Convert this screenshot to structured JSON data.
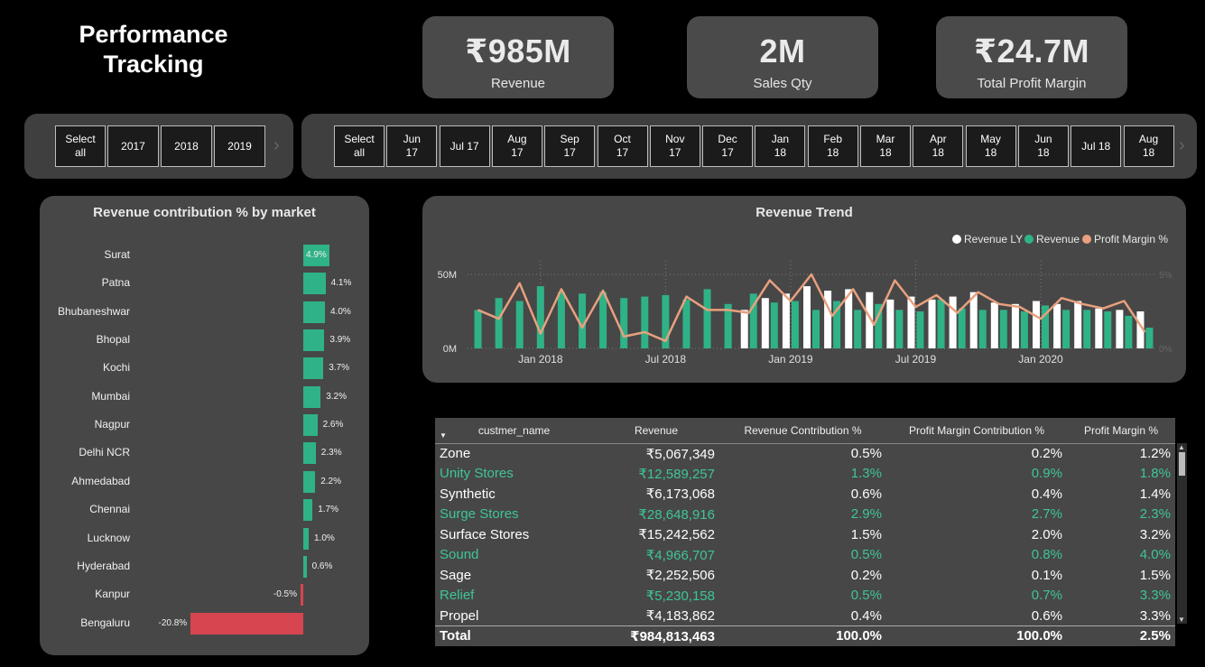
{
  "header": {
    "title_line1": "Performance",
    "title_line2": "Tracking"
  },
  "kpis": [
    {
      "value": "₹985M",
      "label": "Revenue"
    },
    {
      "value": "2M",
      "label": "Sales Qty"
    },
    {
      "value": "₹24.7M",
      "label": "Total Profit Margin"
    }
  ],
  "year_slicer": {
    "items": [
      "Select all",
      "2017",
      "2018",
      "2019"
    ]
  },
  "month_slicer": {
    "items": [
      "Select all",
      "Jun 17",
      "Jul 17",
      "Aug 17",
      "Sep 17",
      "Oct 17",
      "Nov 17",
      "Dec 17",
      "Jan 18",
      "Feb 18",
      "Mar 18",
      "Apr 18",
      "May 18",
      "Jun 18",
      "Jul 18",
      "Aug 18"
    ]
  },
  "market_chart": {
    "title": "Revenue contribution % by market",
    "colors": {
      "positive": "#2fb287",
      "negative": "#d64550"
    },
    "chart_data": {
      "type": "bar",
      "orientation": "horizontal",
      "categories": [
        "Surat",
        "Patna",
        "Bhubaneshwar",
        "Bhopal",
        "Kochi",
        "Mumbai",
        "Nagpur",
        "Delhi NCR",
        "Ahmedabad",
        "Chennai",
        "Lucknow",
        "Hyderabad",
        "Kanpur",
        "Bengaluru"
      ],
      "values": [
        4.9,
        4.1,
        4.0,
        3.9,
        3.7,
        3.2,
        2.6,
        2.3,
        2.2,
        1.7,
        1.0,
        0.6,
        -0.5,
        -20.8
      ],
      "labels": [
        "4.9%",
        "4.1%",
        "4.0%",
        "3.9%",
        "3.7%",
        "3.2%",
        "2.6%",
        "2.3%",
        "2.2%",
        "1.7%",
        "1.0%",
        "0.6%",
        "-0.5%",
        "-20.8%"
      ]
    }
  },
  "trend_chart": {
    "title": "Revenue Trend",
    "legend": [
      "Revenue LY",
      "Revenue",
      "Profit Margin %"
    ],
    "colors": {
      "revenue_ly": "#ffffff",
      "revenue": "#2fb287",
      "profit_margin": "#e8a07e"
    },
    "y_ticks": [
      "0M",
      "50M"
    ],
    "y2_ticks": [
      "0%",
      "5%"
    ],
    "x_ticks": [
      "Jan 2018",
      "Jul 2018",
      "Jan 2019",
      "Jul 2019",
      "Jan 2020"
    ],
    "chart_data": {
      "type": "bar+line",
      "x": [
        "Oct 2017",
        "Nov 2017",
        "Dec 2017",
        "Jan 2018",
        "Feb 2018",
        "Mar 2018",
        "Apr 2018",
        "May 2018",
        "Jun 2018",
        "Jul 2018",
        "Aug 2018",
        "Sep 2018",
        "Oct 2018",
        "Nov 2018",
        "Dec 2018",
        "Jan 2019",
        "Feb 2019",
        "Mar 2019",
        "Apr 2019",
        "May 2019",
        "Jun 2019",
        "Jul 2019",
        "Aug 2019",
        "Sep 2019",
        "Oct 2019",
        "Nov 2019",
        "Dec 2019",
        "Jan 2020",
        "Feb 2020",
        "Mar 2020",
        "Apr 2020",
        "May 2020",
        "Jun 2020"
      ],
      "ylim": [
        0,
        50
      ],
      "y2lim": [
        0,
        5
      ],
      "series": [
        {
          "name": "Revenue LY",
          "values": [
            null,
            null,
            null,
            null,
            null,
            null,
            null,
            null,
            null,
            null,
            null,
            null,
            null,
            26,
            34,
            37,
            42,
            39,
            40,
            38,
            33,
            35,
            33,
            35,
            38,
            31,
            30,
            32,
            30,
            32,
            27,
            26,
            25
          ]
        },
        {
          "name": "Revenue",
          "values": [
            26,
            34,
            32,
            42,
            38,
            37,
            38,
            34,
            35,
            36,
            33,
            40,
            30,
            37,
            31,
            32,
            26,
            32,
            26,
            30,
            26,
            25,
            33,
            27,
            26,
            26,
            25,
            29,
            26,
            26,
            25,
            22,
            14
          ]
        },
        {
          "name": "Profit Margin %",
          "values": [
            2.6,
            2.0,
            4.4,
            1.0,
            4.0,
            1.4,
            3.9,
            0.8,
            1.1,
            0.5,
            3.5,
            2.6,
            2.6,
            2.4,
            4.6,
            3.2,
            5.0,
            2.2,
            4.0,
            1.6,
            4.6,
            2.8,
            3.6,
            2.4,
            3.8,
            3.0,
            2.8,
            2.0,
            3.4,
            3.0,
            2.7,
            3.2,
            1.1
          ]
        }
      ]
    }
  },
  "table": {
    "columns": [
      "custmer_name",
      "Revenue",
      "Revenue Contribution %",
      "Profit Margin Contribution %",
      "Profit Margin %"
    ],
    "rows": [
      [
        "Zone",
        "₹5,067,349",
        "0.5%",
        "0.2%",
        "1.2%"
      ],
      [
        "Unity Stores",
        "₹12,589,257",
        "1.3%",
        "0.9%",
        "1.8%"
      ],
      [
        "Synthetic",
        "₹6,173,068",
        "0.6%",
        "0.4%",
        "1.4%"
      ],
      [
        "Surge Stores",
        "₹28,648,916",
        "2.9%",
        "2.7%",
        "2.3%"
      ],
      [
        "Surface Stores",
        "₹15,242,562",
        "1.5%",
        "2.0%",
        "3.2%"
      ],
      [
        "Sound",
        "₹4,966,707",
        "0.5%",
        "0.8%",
        "4.0%"
      ],
      [
        "Sage",
        "₹2,252,506",
        "0.2%",
        "0.1%",
        "1.5%"
      ],
      [
        "Relief",
        "₹5,230,158",
        "0.5%",
        "0.7%",
        "3.3%"
      ],
      [
        "Propel",
        "₹4,183,862",
        "0.4%",
        "0.6%",
        "3.3%"
      ]
    ],
    "total": [
      "Total",
      "₹984,813,463",
      "100.0%",
      "100.0%",
      "2.5%"
    ],
    "sort_icon": "sort-descending-icon"
  }
}
